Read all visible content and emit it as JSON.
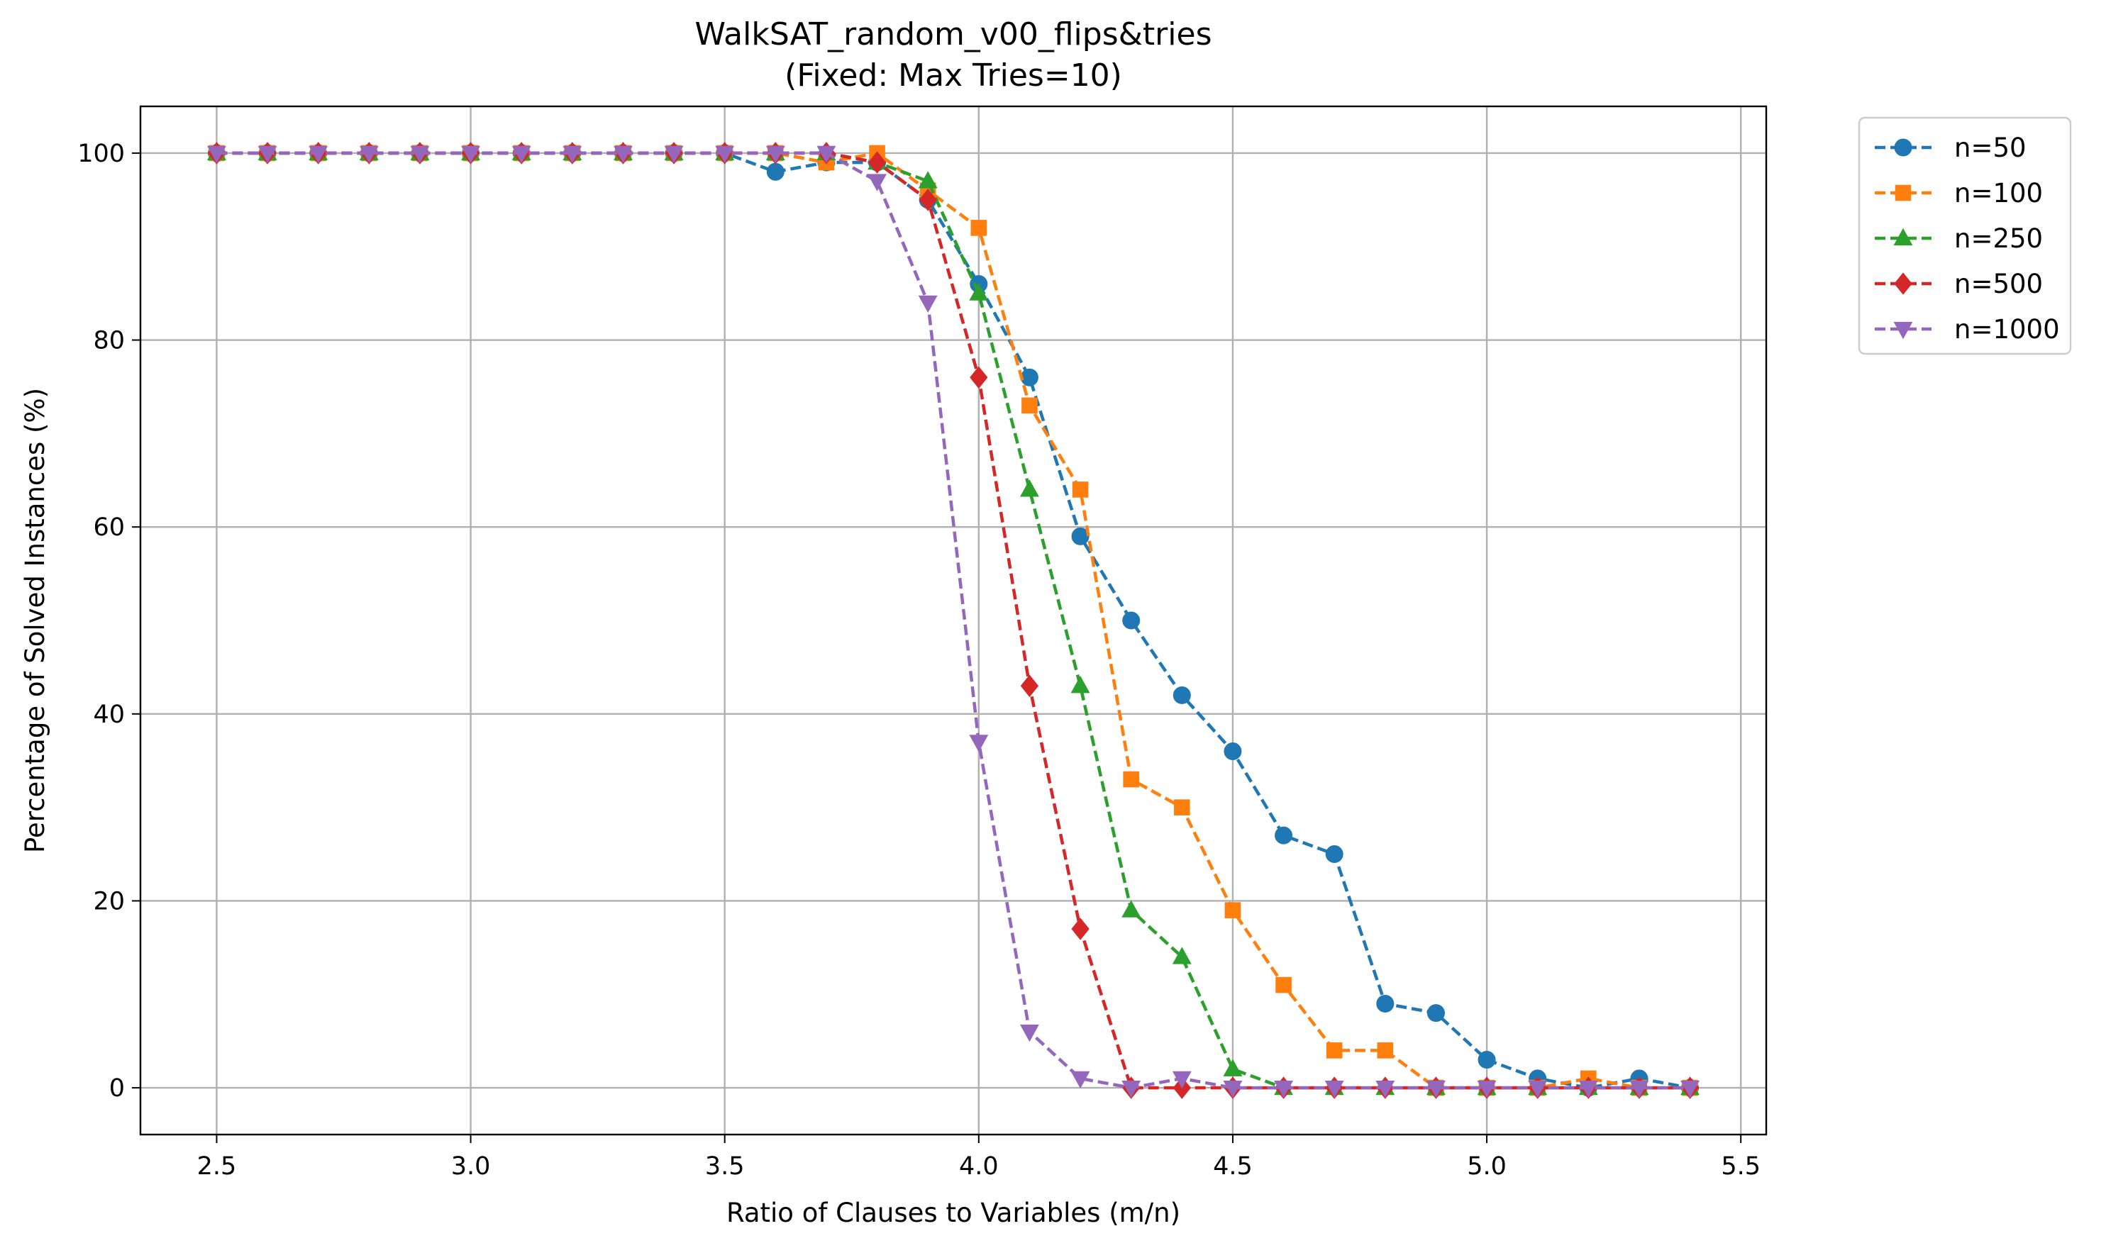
{
  "chart_data": {
    "type": "line",
    "title": "WalkSAT_random_v00_flips&tries",
    "subtitle": "(Fixed: Max Tries=10)",
    "xlabel": "Ratio of Clauses to Variables (m/n)",
    "ylabel": "Percentage of Solved Instances (%)",
    "xlim": [
      2.35,
      5.55
    ],
    "ylim": [
      -5,
      105
    ],
    "xticks": [
      "2.5",
      "3.0",
      "3.5",
      "4.0",
      "4.5",
      "5.0",
      "5.5"
    ],
    "yticks": [
      "0",
      "20",
      "40",
      "60",
      "80",
      "100"
    ],
    "grid": true,
    "legend_position": "outside-top-right",
    "x": [
      2.5,
      2.6,
      2.7,
      2.8,
      2.9,
      3.0,
      3.1,
      3.2,
      3.3,
      3.4,
      3.5,
      3.6,
      3.7,
      3.8,
      3.9,
      4.0,
      4.1,
      4.2,
      4.3,
      4.4,
      4.5,
      4.6,
      4.7,
      4.8,
      4.9,
      5.0,
      5.1,
      5.2,
      5.3,
      5.4
    ],
    "series": [
      {
        "name": "n=50",
        "color": "#1f77b4",
        "marker": "circle",
        "values": [
          100,
          100,
          100,
          100,
          100,
          100,
          100,
          100,
          100,
          100,
          100,
          98,
          99,
          99,
          95,
          86,
          76,
          59,
          50,
          42,
          36,
          27,
          25,
          9,
          8,
          3,
          1,
          0,
          1,
          0
        ]
      },
      {
        "name": "n=100",
        "color": "#ff7f0e",
        "marker": "square",
        "values": [
          100,
          100,
          100,
          100,
          100,
          100,
          100,
          100,
          100,
          100,
          100,
          100,
          99,
          100,
          96,
          92,
          73,
          64,
          33,
          30,
          19,
          11,
          4,
          4,
          0,
          0,
          0,
          1,
          0,
          0
        ]
      },
      {
        "name": "n=250",
        "color": "#2ca02c",
        "marker": "triangle-up",
        "values": [
          100,
          100,
          100,
          100,
          100,
          100,
          100,
          100,
          100,
          100,
          100,
          100,
          100,
          99,
          97,
          85,
          64,
          43,
          19,
          14,
          2,
          0,
          0,
          0,
          0,
          0,
          0,
          0,
          0,
          0
        ]
      },
      {
        "name": "n=500",
        "color": "#d62728",
        "marker": "diamond",
        "values": [
          100,
          100,
          100,
          100,
          100,
          100,
          100,
          100,
          100,
          100,
          100,
          100,
          100,
          99,
          95,
          76,
          43,
          17,
          0,
          0,
          0,
          0,
          0,
          0,
          0,
          0,
          0,
          0,
          0,
          0
        ]
      },
      {
        "name": "n=1000",
        "color": "#9467bd",
        "marker": "triangle-down",
        "values": [
          100,
          100,
          100,
          100,
          100,
          100,
          100,
          100,
          100,
          100,
          100,
          100,
          100,
          97,
          84,
          37,
          6,
          1,
          0,
          1,
          0,
          0,
          0,
          0,
          0,
          0,
          0,
          0,
          0,
          0
        ]
      }
    ]
  }
}
